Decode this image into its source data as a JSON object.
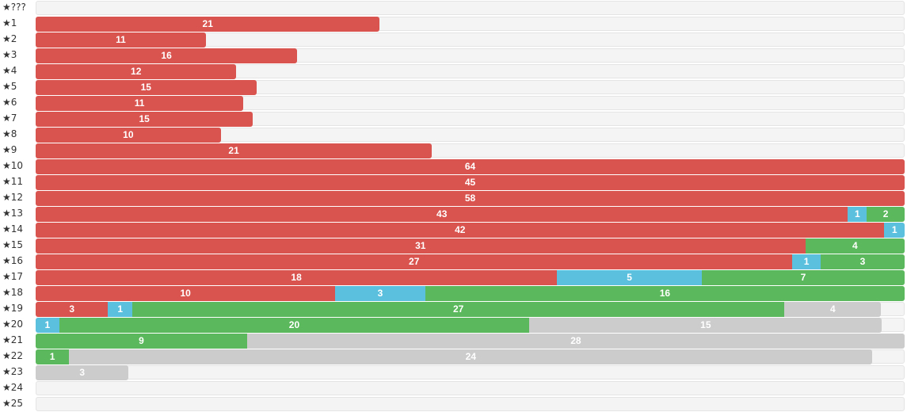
{
  "colors": {
    "red": "#d9534f",
    "blue": "#5bc0de",
    "green": "#5cb85c",
    "gray": "#cccccc",
    "track": "#f4f4f4"
  },
  "chart_data": {
    "type": "bar",
    "orientation": "horizontal",
    "stacked": true,
    "grid": false,
    "scale_max": 64,
    "segment_order": [
      "red",
      "blue",
      "green",
      "gray"
    ],
    "categories": [
      "★???",
      "★1",
      "★2",
      "★3",
      "★4",
      "★5",
      "★6",
      "★7",
      "★8",
      "★9",
      "★10",
      "★11",
      "★12",
      "★13",
      "★14",
      "★15",
      "★16",
      "★17",
      "★18",
      "★19",
      "★20",
      "★21",
      "★22",
      "★23",
      "★24",
      "★25"
    ],
    "series": [
      {
        "color": "red",
        "values": [
          0,
          21,
          11,
          16,
          12,
          15,
          11,
          15,
          10,
          21,
          64,
          45,
          58,
          43,
          42,
          31,
          27,
          18,
          10,
          3,
          0,
          0,
          0,
          0,
          0,
          0
        ]
      },
      {
        "color": "blue",
        "values": [
          0,
          0,
          0,
          0,
          0,
          0,
          0,
          0,
          0,
          0,
          0,
          0,
          0,
          1,
          1,
          0,
          1,
          5,
          3,
          1,
          1,
          0,
          0,
          0,
          0,
          0
        ]
      },
      {
        "color": "green",
        "values": [
          0,
          0,
          0,
          0,
          0,
          0,
          0,
          0,
          0,
          0,
          0,
          0,
          0,
          2,
          0,
          4,
          3,
          7,
          16,
          27,
          20,
          9,
          1,
          0,
          0,
          0
        ]
      },
      {
        "color": "gray",
        "values": [
          0,
          0,
          0,
          0,
          0,
          0,
          0,
          0,
          0,
          0,
          0,
          0,
          0,
          0,
          0,
          0,
          0,
          0,
          0,
          4,
          15,
          28,
          24,
          3,
          0,
          0
        ]
      }
    ],
    "row_fill_fraction": [
      0,
      0.396,
      0.196,
      0.301,
      0.231,
      0.254,
      0.239,
      0.25,
      0.213,
      0.456,
      1,
      1,
      1,
      1,
      1,
      1,
      1,
      1,
      1,
      0.973,
      0.974,
      1,
      0.963,
      0.107,
      0,
      0
    ]
  }
}
